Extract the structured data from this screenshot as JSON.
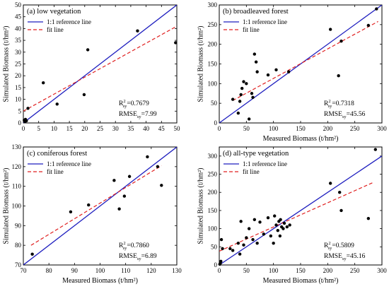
{
  "chart_data": [
    {
      "type": "scatter",
      "label": "(a) low vegetation",
      "xlabel": "",
      "ylabel": "Simulated Biomass (t/hm²)",
      "xlim": [
        0,
        50
      ],
      "ylim": [
        0,
        50
      ],
      "xticks": [
        "0",
        "5",
        "10",
        "15",
        "20",
        "25",
        "30",
        "35",
        "40",
        "45",
        "50"
      ],
      "yticks": [
        "0",
        "5",
        "10",
        "15",
        "20",
        "25",
        "30",
        "35",
        "40",
        "45",
        "50"
      ],
      "points": [
        {
          "x": 0.3,
          "y": 1.2
        },
        {
          "x": 0.5,
          "y": 0.6
        },
        {
          "x": 0.7,
          "y": 1.5
        },
        {
          "x": 1.0,
          "y": 0.9
        },
        {
          "x": 1.5,
          "y": 6.2
        },
        {
          "x": 6.5,
          "y": 17.0
        },
        {
          "x": 11.0,
          "y": 8.0
        },
        {
          "x": 19.8,
          "y": 12.0
        },
        {
          "x": 21.0,
          "y": 31.0
        },
        {
          "x": 37.2,
          "y": 39.0
        },
        {
          "x": 49.6,
          "y": 34.0
        }
      ],
      "reference_line": [
        0,
        50
      ],
      "fit_line": {
        "x0": 0,
        "x1": 50,
        "y0": 5.0,
        "y1": 41.0
      },
      "legend": [
        "1:1 reference line",
        "fit line"
      ],
      "r2": "0.7679",
      "rmse": "7.99"
    },
    {
      "type": "scatter",
      "label": "(b) broadleaved forest",
      "xlabel": "Measured Biomass (t/hm²)",
      "ylabel": "Simulated Biomass (t/hm²)",
      "xlim": [
        0,
        300
      ],
      "ylim": [
        0,
        300
      ],
      "xticks": [
        "0",
        "50",
        "100",
        "150",
        "200",
        "250",
        "300"
      ],
      "yticks": [
        "0",
        "50",
        "100",
        "150",
        "200",
        "250",
        "300"
      ],
      "points": [
        {
          "x": 25,
          "y": 60
        },
        {
          "x": 35,
          "y": 25
        },
        {
          "x": 38,
          "y": 55
        },
        {
          "x": 40,
          "y": 72
        },
        {
          "x": 42,
          "y": 88
        },
        {
          "x": 45,
          "y": 105
        },
        {
          "x": 50,
          "y": 100
        },
        {
          "x": 55,
          "y": 10
        },
        {
          "x": 60,
          "y": 75
        },
        {
          "x": 62,
          "y": 65
        },
        {
          "x": 65,
          "y": 175
        },
        {
          "x": 68,
          "y": 155
        },
        {
          "x": 70,
          "y": 130
        },
        {
          "x": 90,
          "y": 122
        },
        {
          "x": 105,
          "y": 135
        },
        {
          "x": 128,
          "y": 130
        },
        {
          "x": 205,
          "y": 238
        },
        {
          "x": 220,
          "y": 120
        },
        {
          "x": 225,
          "y": 208
        },
        {
          "x": 275,
          "y": 248
        },
        {
          "x": 290,
          "y": 290
        }
      ],
      "reference_line": [
        0,
        300
      ],
      "fit_line": {
        "x0": 25,
        "x1": 293,
        "y0": 57,
        "y1": 258
      },
      "legend": [
        "1:1 reference line",
        "fit line"
      ],
      "r2": "0.7318",
      "rmse": "45.56"
    },
    {
      "type": "scatter",
      "label": "(c) coniferous forest",
      "xlabel": "Measured Biomass (t/hm²)",
      "ylabel": "Simulated Biomass (t/hm²)",
      "xlim": [
        70,
        130
      ],
      "ylim": [
        70,
        130
      ],
      "xticks": [
        "70",
        "80",
        "90",
        "100",
        "110",
        "120",
        "130"
      ],
      "yticks": [
        "70",
        "80",
        "90",
        "100",
        "110",
        "120",
        "130"
      ],
      "points": [
        {
          "x": 73.5,
          "y": 75.5
        },
        {
          "x": 88.5,
          "y": 97
        },
        {
          "x": 95.5,
          "y": 100.5
        },
        {
          "x": 105.5,
          "y": 113
        },
        {
          "x": 107.5,
          "y": 98.5
        },
        {
          "x": 109.5,
          "y": 105
        },
        {
          "x": 111.5,
          "y": 115
        },
        {
          "x": 118.5,
          "y": 125
        },
        {
          "x": 122.5,
          "y": 120
        },
        {
          "x": 124,
          "y": 110.5
        }
      ],
      "reference_line": [
        70,
        130
      ],
      "fit_line": {
        "x0": 73,
        "x1": 124,
        "y0": 80,
        "y1": 120.5
      },
      "legend": [
        "1:1 reference line",
        "fit line"
      ],
      "r2": "0.7860",
      "rmse": "6.89"
    },
    {
      "type": "scatter",
      "label": "(d) all-type vegetation",
      "xlabel": "Measured Biomass (t/hm²)",
      "ylabel": "Simulated Biomass (t/hm²)",
      "xlim": [
        0,
        300
      ],
      "ylim": [
        0,
        325
      ],
      "xticks": [
        "0",
        "50",
        "100",
        "150",
        "200",
        "250",
        "300"
      ],
      "yticks": [
        "0",
        "50",
        "100",
        "150",
        "200",
        "250",
        "300"
      ],
      "points": [
        {
          "x": 1,
          "y": 2
        },
        {
          "x": 2,
          "y": 5
        },
        {
          "x": 3,
          "y": 10
        },
        {
          "x": 4,
          "y": 70
        },
        {
          "x": 6,
          "y": 45
        },
        {
          "x": 20,
          "y": 45
        },
        {
          "x": 25,
          "y": 40
        },
        {
          "x": 35,
          "y": 60
        },
        {
          "x": 38,
          "y": 30
        },
        {
          "x": 40,
          "y": 120
        },
        {
          "x": 45,
          "y": 55
        },
        {
          "x": 50,
          "y": 75
        },
        {
          "x": 55,
          "y": 100
        },
        {
          "x": 62,
          "y": 70
        },
        {
          "x": 65,
          "y": 125
        },
        {
          "x": 70,
          "y": 60
        },
        {
          "x": 75,
          "y": 118
        },
        {
          "x": 82,
          "y": 85
        },
        {
          "x": 90,
          "y": 130
        },
        {
          "x": 95,
          "y": 80
        },
        {
          "x": 100,
          "y": 60
        },
        {
          "x": 102,
          "y": 135
        },
        {
          "x": 105,
          "y": 110
        },
        {
          "x": 108,
          "y": 95
        },
        {
          "x": 110,
          "y": 120
        },
        {
          "x": 112,
          "y": 80
        },
        {
          "x": 113,
          "y": 125
        },
        {
          "x": 115,
          "y": 105
        },
        {
          "x": 118,
          "y": 100
        },
        {
          "x": 120,
          "y": 115
        },
        {
          "x": 125,
          "y": 105
        },
        {
          "x": 130,
          "y": 110
        },
        {
          "x": 205,
          "y": 225
        },
        {
          "x": 222,
          "y": 200
        },
        {
          "x": 225,
          "y": 150
        },
        {
          "x": 275,
          "y": 128
        },
        {
          "x": 288,
          "y": 318
        }
      ],
      "reference_line": [
        0,
        300
      ],
      "fit_line": {
        "x0": 0,
        "x1": 285,
        "y0": 38,
        "y1": 228
      },
      "legend": [
        "1:1 reference line",
        "fit line"
      ],
      "r2": "0.5809",
      "rmse": "45.16"
    }
  ],
  "colors": {
    "reference": "#1f1fbf",
    "fit": "#e02020",
    "points": "#000000"
  }
}
